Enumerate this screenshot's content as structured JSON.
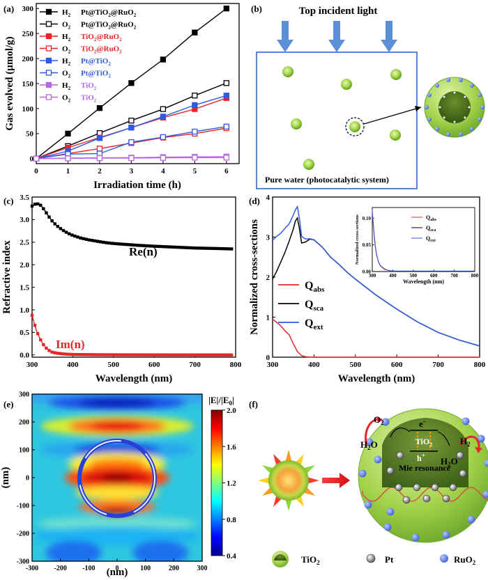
{
  "panel_labels": [
    "(a)",
    "(b)",
    "(c)",
    "(d)",
    "(e)",
    "(f)"
  ],
  "chart_data": [
    {
      "panel": "(a)",
      "type": "line",
      "xlabel": "Irradiation time (h)",
      "ylabel": "Gas evolved (µmol/g)",
      "xlim": [
        0,
        6.4
      ],
      "ylim": [
        -10,
        310
      ],
      "xticks": [
        0,
        1,
        2,
        3,
        4,
        5,
        6
      ],
      "yticks": [
        0,
        50,
        100,
        150,
        200,
        250,
        300
      ],
      "x": [
        0,
        1,
        2,
        3,
        4,
        5,
        6
      ],
      "series": [
        {
          "gas": "H",
          "sub": "2",
          "name": "Pt@TiO",
          "sub2": "2",
          "tail": "@RuO",
          "sub3": "2",
          "color": "#000000",
          "marker": "filled",
          "values": [
            0,
            50,
            101,
            151,
            198,
            252,
            300
          ]
        },
        {
          "gas": "O",
          "sub": "2",
          "name": "Pt@TiO",
          "sub2": "2",
          "tail": "@RuO",
          "sub3": "2",
          "color": "#000000",
          "marker": "open",
          "values": [
            0,
            25,
            51,
            76,
            99,
            126,
            151
          ]
        },
        {
          "gas": "H",
          "sub": "2",
          "name": "TiO",
          "sub2": "2",
          "tail": "@RuO",
          "sub3": "2",
          "color": "#e8262a",
          "marker": "filled",
          "values": [
            0,
            22,
            42,
            62,
            82,
            99,
            121
          ]
        },
        {
          "gas": "O",
          "sub": "2",
          "name": "TiO",
          "sub2": "2",
          "tail": "@RuO",
          "sub3": "2",
          "color": "#e8262a",
          "marker": "open",
          "values": [
            0,
            10,
            20,
            31,
            42,
            50,
            61
          ]
        },
        {
          "gas": "H",
          "sub": "2",
          "name": "Pt@TiO",
          "sub2": "2",
          "tail": "",
          "sub3": "",
          "color": "#2d5be3",
          "marker": "filled",
          "values": [
            0,
            15,
            41,
            62,
            84,
            107,
            126
          ]
        },
        {
          "gas": "O",
          "sub": "2",
          "name": "Pt@TiO",
          "sub2": "2",
          "tail": "",
          "sub3": "",
          "color": "#2d5be3",
          "marker": "open",
          "values": [
            0,
            9,
            10,
            33,
            43,
            54,
            64
          ]
        },
        {
          "gas": "H",
          "sub": "2",
          "name": "TiO",
          "sub2": "2",
          "tail": "",
          "sub3": "",
          "color": "#b566e0",
          "marker": "filled",
          "values": [
            0,
            1,
            1.5,
            2,
            3,
            3.5,
            4
          ]
        },
        {
          "gas": "O",
          "sub": "2",
          "name": "TiO",
          "sub2": "2",
          "tail": "",
          "sub3": "",
          "color": "#b566e0",
          "marker": "open",
          "values": [
            0,
            0.5,
            1,
            1,
            1.5,
            2,
            2
          ]
        }
      ]
    },
    {
      "panel": "(c)",
      "type": "line",
      "xlabel": "Wavelength (nm)",
      "ylabel": "Refractive index",
      "xlim": [
        300,
        800
      ],
      "ylim": [
        -0.05,
        3.5
      ],
      "xticks": [
        300,
        400,
        500,
        600,
        700,
        800
      ],
      "yticks": [
        0.0,
        0.5,
        1.0,
        1.5,
        2.0,
        2.5,
        3.0,
        3.5
      ],
      "series": [
        {
          "name": "Re(n)",
          "color": "#000000",
          "points": [
            [
              300,
              3.3
            ],
            [
              310,
              3.36
            ],
            [
              320,
              3.33
            ],
            [
              330,
              3.22
            ],
            [
              340,
              3.08
            ],
            [
              350,
              2.96
            ],
            [
              360,
              2.87
            ],
            [
              370,
              2.8
            ],
            [
              380,
              2.74
            ],
            [
              390,
              2.69
            ],
            [
              400,
              2.65
            ],
            [
              420,
              2.59
            ],
            [
              440,
              2.55
            ],
            [
              460,
              2.52
            ],
            [
              480,
              2.49
            ],
            [
              500,
              2.47
            ],
            [
              530,
              2.45
            ],
            [
              560,
              2.43
            ],
            [
              600,
              2.41
            ],
            [
              650,
              2.39
            ],
            [
              700,
              2.37
            ],
            [
              750,
              2.36
            ],
            [
              790,
              2.35
            ]
          ]
        },
        {
          "name": "Im(n)",
          "color": "#e8262a",
          "points": [
            [
              300,
              0.88
            ],
            [
              305,
              0.72
            ],
            [
              310,
              0.56
            ],
            [
              315,
              0.45
            ],
            [
              320,
              0.35
            ],
            [
              325,
              0.27
            ],
            [
              330,
              0.2
            ],
            [
              335,
              0.15
            ],
            [
              340,
              0.11
            ],
            [
              345,
              0.08
            ],
            [
              350,
              0.06
            ],
            [
              360,
              0.04
            ],
            [
              370,
              0.03
            ],
            [
              380,
              0.02
            ],
            [
              400,
              0.01
            ],
            [
              450,
              0.005
            ],
            [
              500,
              0.003
            ],
            [
              600,
              0.001
            ],
            [
              700,
              0.0
            ],
            [
              790,
              0.0
            ]
          ]
        }
      ]
    },
    {
      "panel": "(d)",
      "type": "line",
      "xlabel": "Wavelength (nm)",
      "ylabel": "Normalized cross-sections",
      "xlim": [
        300,
        800
      ],
      "ylim": [
        0,
        4
      ],
      "xticks": [
        300,
        400,
        500,
        600,
        700,
        800
      ],
      "yticks": [
        0,
        1,
        2,
        3,
        4
      ],
      "series": [
        {
          "base": "Q",
          "sub": "abs",
          "color": "#e8262a",
          "points": [
            [
              300,
              0.95
            ],
            [
              310,
              0.87
            ],
            [
              320,
              0.78
            ],
            [
              330,
              0.66
            ],
            [
              340,
              0.56
            ],
            [
              345,
              0.45
            ],
            [
              350,
              0.33
            ],
            [
              355,
              0.24
            ],
            [
              360,
              0.14
            ],
            [
              370,
              0.04
            ],
            [
              380,
              0.01
            ],
            [
              400,
              0.0
            ],
            [
              800,
              0.0
            ]
          ]
        },
        {
          "base": "Q",
          "sub": "sca",
          "color": "#000000",
          "points": [
            [
              300,
              1.95
            ],
            [
              310,
              2.15
            ],
            [
              320,
              2.38
            ],
            [
              330,
              2.62
            ],
            [
              340,
              2.9
            ],
            [
              350,
              3.2
            ],
            [
              355,
              3.4
            ],
            [
              360,
              3.48
            ],
            [
              365,
              3.2
            ],
            [
              370,
              2.85
            ],
            [
              380,
              2.88
            ],
            [
              390,
              2.95
            ],
            [
              400,
              2.93
            ],
            [
              420,
              2.75
            ],
            [
              440,
              2.5
            ],
            [
              460,
              2.32
            ],
            [
              480,
              2.12
            ],
            [
              500,
              1.95
            ],
            [
              550,
              1.55
            ],
            [
              600,
              1.2
            ],
            [
              650,
              0.88
            ],
            [
              700,
              0.62
            ],
            [
              750,
              0.43
            ],
            [
              800,
              0.28
            ]
          ]
        },
        {
          "base": "Q",
          "sub": "ext",
          "color": "#2d5be3",
          "points": [
            [
              300,
              2.92
            ],
            [
              310,
              3.02
            ],
            [
              320,
              3.1
            ],
            [
              330,
              3.22
            ],
            [
              340,
              3.33
            ],
            [
              350,
              3.55
            ],
            [
              355,
              3.68
            ],
            [
              360,
              3.76
            ],
            [
              365,
              3.45
            ],
            [
              370,
              3.02
            ],
            [
              380,
              2.95
            ],
            [
              390,
              2.96
            ],
            [
              400,
              2.93
            ],
            [
              420,
              2.75
            ],
            [
              440,
              2.5
            ],
            [
              460,
              2.32
            ],
            [
              480,
              2.12
            ],
            [
              500,
              1.95
            ],
            [
              550,
              1.55
            ],
            [
              600,
              1.2
            ],
            [
              650,
              0.88
            ],
            [
              700,
              0.62
            ],
            [
              750,
              0.43
            ],
            [
              800,
              0.28
            ]
          ]
        }
      ],
      "inset": {
        "xlabel": "Wavelength (nm)",
        "ylabel": "Normalized cross-sections",
        "xlim": [
          300,
          800
        ],
        "ylim": [
          0,
          0.12
        ],
        "xticks": [
          300,
          400,
          500,
          600,
          700,
          800
        ],
        "yticks": [
          0.0,
          0.05,
          0.1
        ],
        "ytick_labels": [
          "0.00",
          "0.05",
          "0.10"
        ],
        "series": [
          {
            "base": "Q",
            "sub": "abs",
            "color": "#e8262a",
            "points": [
              [
                300,
                0.11
              ],
              [
                305,
                0.085
              ],
              [
                310,
                0.062
              ],
              [
                315,
                0.045
              ],
              [
                320,
                0.032
              ],
              [
                330,
                0.018
              ],
              [
                340,
                0.01
              ],
              [
                360,
                0.004
              ],
              [
                380,
                0.002
              ],
              [
                400,
                0.001
              ],
              [
                800,
                0.0
              ]
            ]
          },
          {
            "base": "Q",
            "sub": "sca",
            "color": "#000000",
            "points": [
              [
                300,
                0.0
              ],
              [
                800,
                0.0
              ]
            ]
          },
          {
            "base": "Q",
            "sub": "ext",
            "color": "#2d5be3",
            "points": [
              [
                300,
                0.115
              ],
              [
                305,
                0.09
              ],
              [
                310,
                0.067
              ],
              [
                315,
                0.048
              ],
              [
                320,
                0.034
              ],
              [
                330,
                0.019
              ],
              [
                340,
                0.011
              ],
              [
                360,
                0.005
              ],
              [
                380,
                0.002
              ],
              [
                400,
                0.001
              ],
              [
                800,
                0.001
              ]
            ]
          }
        ]
      }
    },
    {
      "panel": "(e)",
      "type": "heatmap",
      "xlabel": "(nm)",
      "ylabel": "(nm)",
      "xlim": [
        -300,
        300
      ],
      "ylim": [
        -300,
        300
      ],
      "xticks": [
        -300,
        -200,
        -100,
        0,
        100,
        200,
        300
      ],
      "yticks": [
        -300,
        -200,
        -100,
        0,
        100,
        200,
        300
      ],
      "colorbar_label": "|E|/|E",
      "colorbar_label_sub": "0",
      "colorbar_label_tail": "|",
      "colorbar_range": [
        0.4,
        2.0
      ],
      "colorbar_ticks": [
        0.4,
        0.8,
        1.2,
        1.6,
        2.0
      ],
      "colorbar_tick_labels": [
        "0.4",
        "0.8",
        "1.2",
        "1.6",
        "2.0"
      ]
    }
  ],
  "panel_b": {
    "title": "Top incident light",
    "caption": "Pure water (photocatalytic system)"
  },
  "panel_f": {
    "e_label": "e",
    "e_sup": "-",
    "h_label": "h",
    "h_sup": "+",
    "tio2": "TiO",
    "tio2_sub": "2",
    "o2": "O",
    "o2_sub": "2",
    "h2": "H",
    "h2_sub": "2",
    "h2o_left": "H",
    "h2o_left_sub": "2",
    "h2o_left_tail": "O",
    "h2o_right": "H",
    "h2o_right_sub": "2",
    "h2o_right_tail": "O",
    "mie": "Mie resonance",
    "legend": [
      {
        "text": "TiO",
        "sub": "2"
      },
      {
        "text": "Pt",
        "sub": ""
      },
      {
        "text": "RuO",
        "sub": "2"
      }
    ]
  }
}
